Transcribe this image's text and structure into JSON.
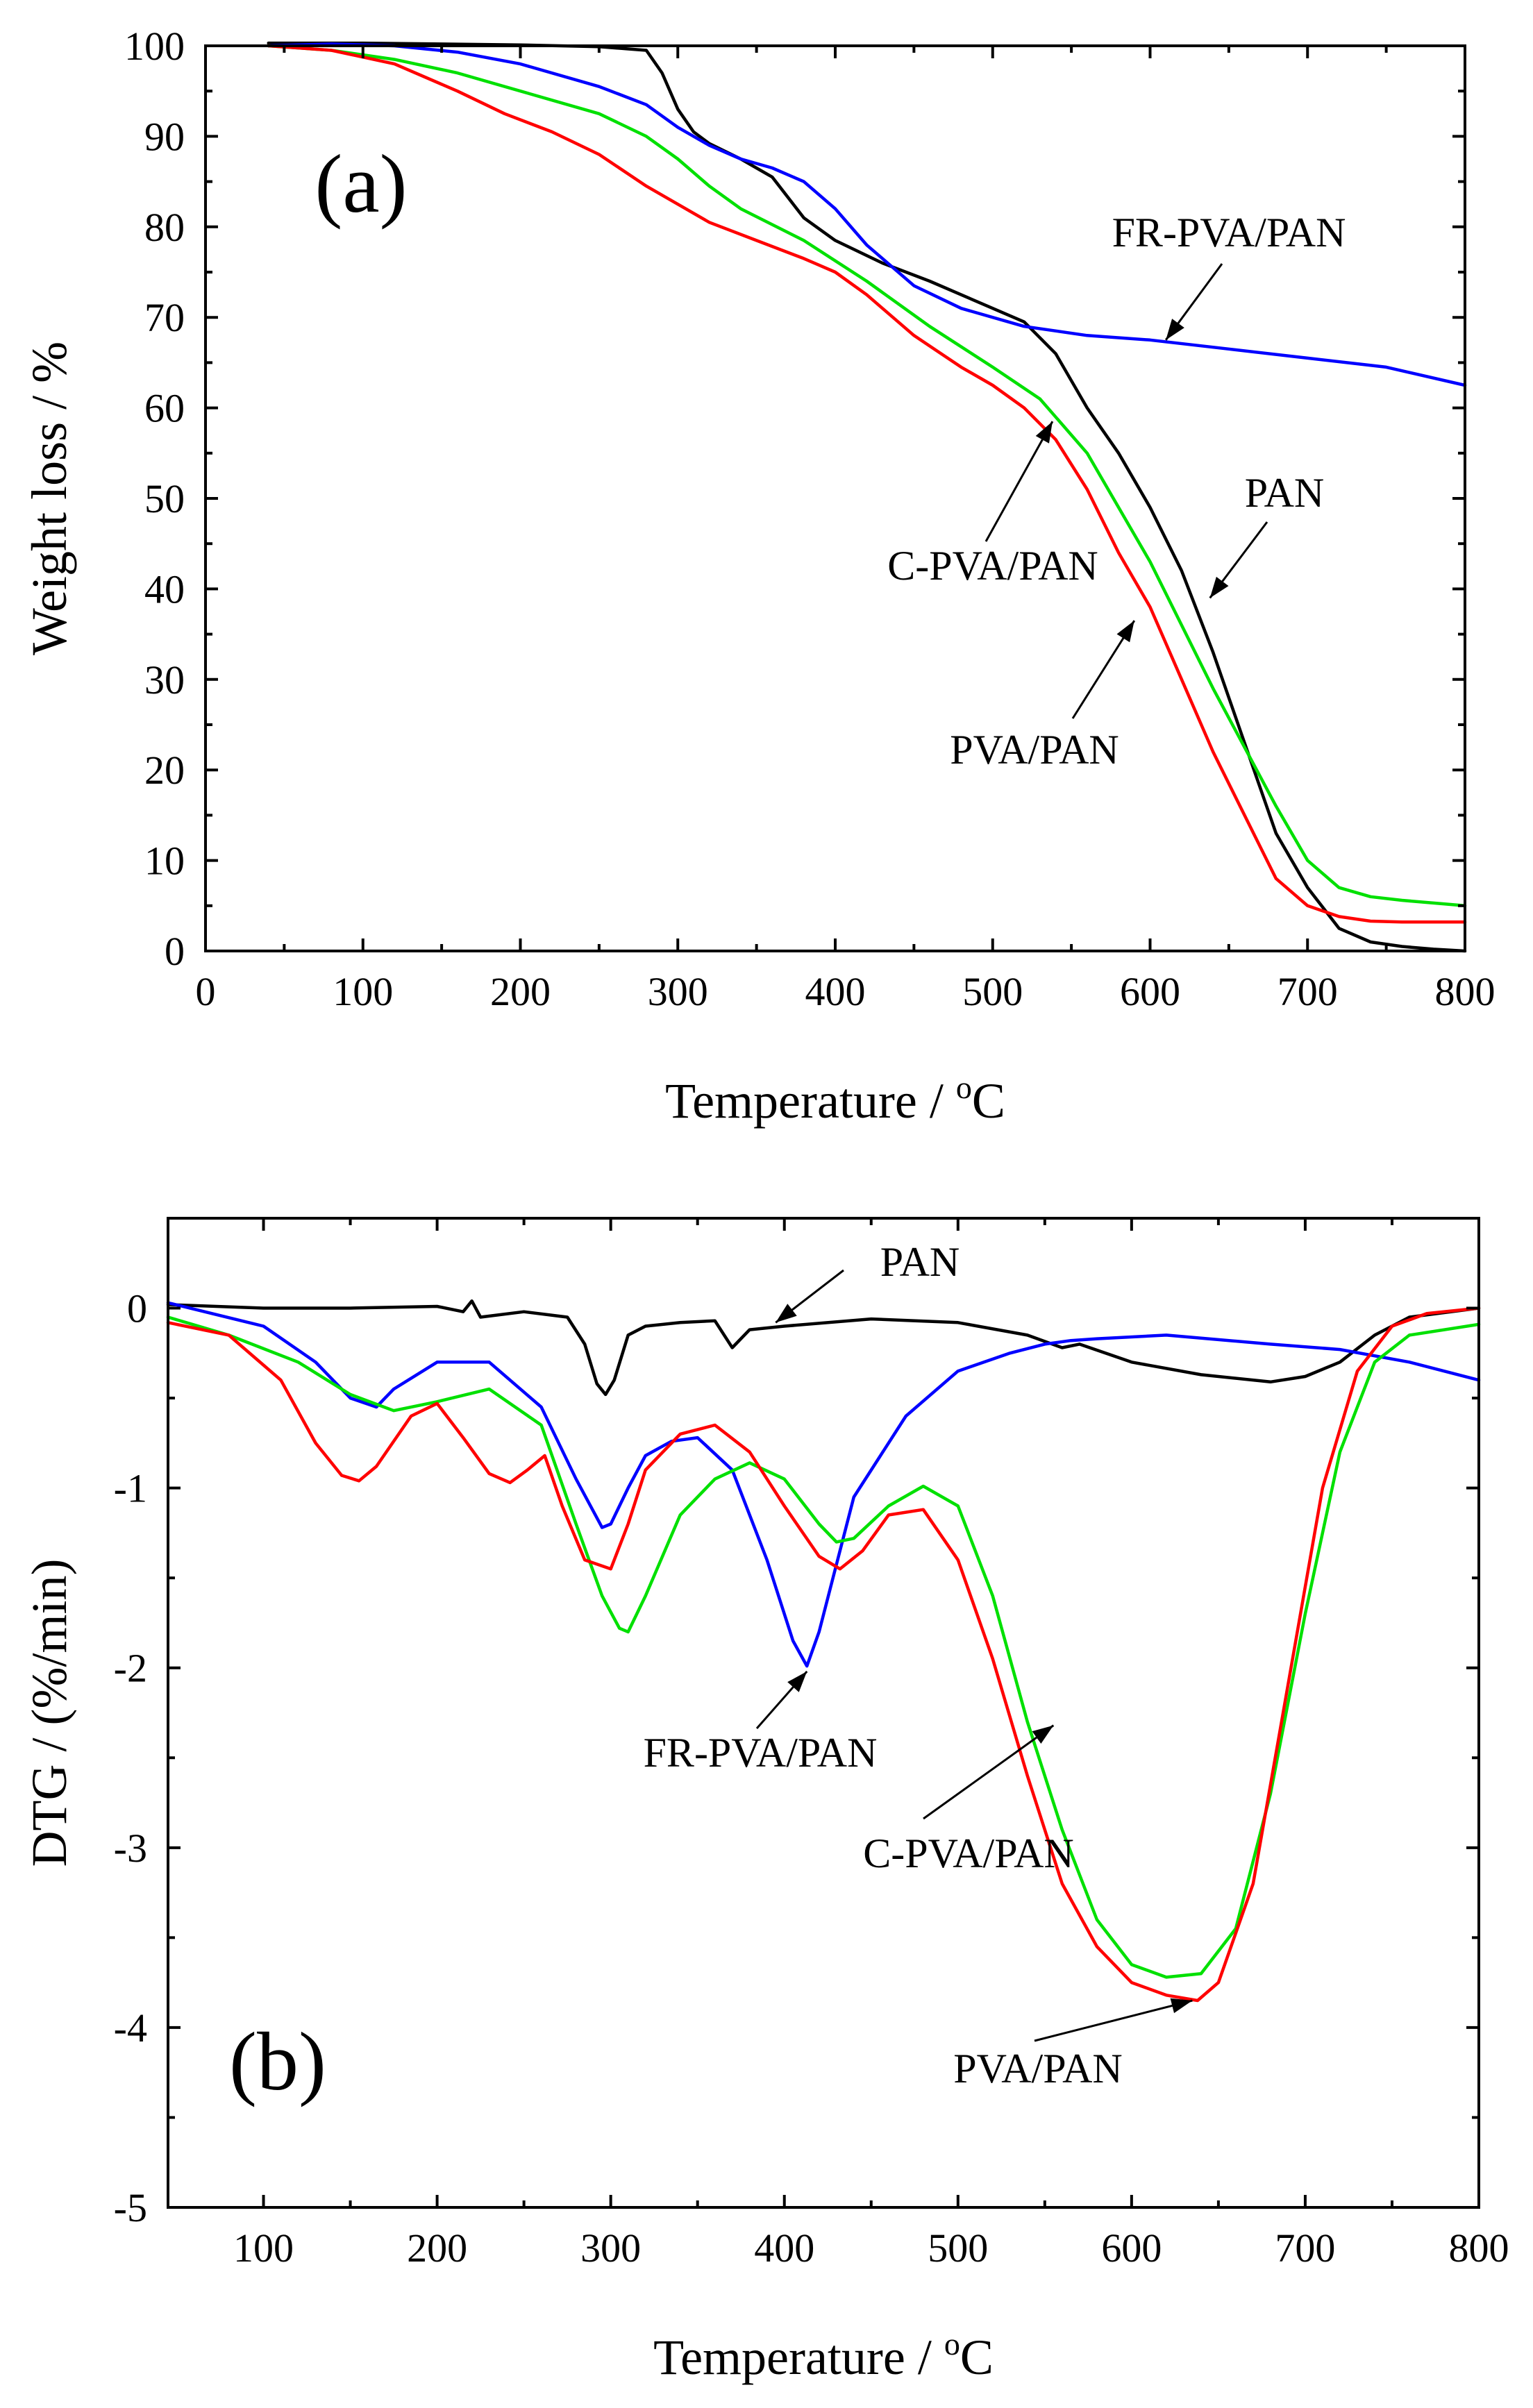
{
  "chart_data": [
    {
      "type": "line",
      "panel_label": "(a)",
      "xlabel": "Temperature / ",
      "xlabel_sup": "o",
      "xlabel_unit": "C",
      "ylabel": "Weight loss / %",
      "xlim": [
        0,
        800
      ],
      "ylim": [
        0,
        100
      ],
      "xticks": [
        0,
        100,
        200,
        300,
        400,
        500,
        600,
        700,
        800
      ],
      "yticks": [
        0,
        10,
        20,
        30,
        40,
        50,
        60,
        70,
        80,
        90,
        100
      ],
      "series": [
        {
          "name": "PAN",
          "color": "#000000",
          "x": [
            40,
            100,
            150,
            200,
            250,
            280,
            290,
            300,
            310,
            320,
            340,
            360,
            380,
            400,
            430,
            460,
            500,
            520,
            540,
            560,
            580,
            600,
            620,
            640,
            660,
            680,
            700,
            720,
            740,
            760,
            780,
            800
          ],
          "y": [
            100.3,
            100.3,
            100.2,
            100.1,
            99.9,
            99.5,
            97,
            93,
            90.5,
            89.2,
            87.5,
            85.5,
            81,
            78.5,
            76,
            74,
            71,
            69.5,
            66,
            60,
            55,
            49,
            42,
            33,
            23,
            13,
            7,
            2.5,
            1,
            0.5,
            0.2,
            0
          ]
        },
        {
          "name": "FR-PVA/PAN",
          "color": "#0000ff",
          "x": [
            40,
            80,
            120,
            160,
            200,
            250,
            280,
            300,
            320,
            340,
            360,
            380,
            400,
            420,
            450,
            480,
            520,
            560,
            600,
            650,
            700,
            750,
            800
          ],
          "y": [
            100,
            100.2,
            100,
            99.3,
            98,
            95.5,
            93.5,
            91,
            89,
            87.5,
            86.5,
            85,
            82,
            78,
            73.5,
            71,
            69,
            68,
            67.5,
            66.5,
            65.5,
            64.5,
            62.5
          ]
        },
        {
          "name": "C-PVA/PAN",
          "color": "#00e000",
          "x": [
            40,
            80,
            120,
            160,
            200,
            250,
            280,
            300,
            320,
            340,
            380,
            420,
            460,
            500,
            530,
            560,
            600,
            640,
            680,
            700,
            720,
            740,
            760,
            780,
            800
          ],
          "y": [
            100,
            99.5,
            98.5,
            97,
            95,
            92.5,
            90,
            87.5,
            84.5,
            82,
            78.5,
            74,
            69,
            64.5,
            61,
            55,
            43,
            29,
            16,
            10,
            7,
            6,
            5.6,
            5.3,
            5
          ]
        },
        {
          "name": "PVA/PAN",
          "color": "#ff0000",
          "x": [
            40,
            80,
            120,
            160,
            190,
            220,
            250,
            280,
            300,
            320,
            350,
            380,
            400,
            420,
            450,
            480,
            500,
            520,
            540,
            560,
            580,
            600,
            620,
            640,
            660,
            680,
            700,
            720,
            740,
            760,
            800
          ],
          "y": [
            100,
            99.5,
            98,
            95,
            92.5,
            90.5,
            88,
            84.5,
            82.5,
            80.5,
            78.5,
            76.5,
            75,
            72.5,
            68,
            64.5,
            62.5,
            60,
            56.5,
            51,
            44,
            38,
            30,
            22,
            15,
            8,
            5,
            3.8,
            3.3,
            3.2,
            3.2
          ]
        }
      ],
      "annotations": [
        {
          "text": "FR-PVA/PAN",
          "target_x": 610,
          "target_y": 67.5
        },
        {
          "text": "PAN",
          "target_x": 638,
          "target_y": 39
        },
        {
          "text": "C-PVA/PAN",
          "target_x": 538,
          "target_y": 58.5
        },
        {
          "text": "PVA/PAN",
          "target_x": 590,
          "target_y": 36.5
        }
      ]
    },
    {
      "type": "line",
      "panel_label": "(b)",
      "xlabel": "Temperature / ",
      "xlabel_sup": "o",
      "xlabel_unit": "C",
      "ylabel": "DTG / (%/min)",
      "xlim": [
        45,
        800
      ],
      "ylim": [
        -5,
        0.5
      ],
      "xticks": [
        100,
        200,
        300,
        400,
        500,
        600,
        700,
        800
      ],
      "yticks": [
        0,
        -1,
        -2,
        -3,
        -4,
        -5
      ],
      "series": [
        {
          "name": "PAN",
          "color": "#000000",
          "x": [
            45,
            100,
            150,
            200,
            215,
            220,
            225,
            250,
            275,
            285,
            292,
            297,
            302,
            310,
            320,
            340,
            360,
            370,
            380,
            400,
            450,
            500,
            540,
            560,
            570,
            600,
            640,
            680,
            700,
            720,
            740,
            760,
            800
          ],
          "y": [
            0.02,
            0,
            0,
            0.01,
            -0.02,
            0.04,
            -0.05,
            -0.02,
            -0.05,
            -0.2,
            -0.42,
            -0.48,
            -0.4,
            -0.15,
            -0.1,
            -0.08,
            -0.07,
            -0.22,
            -0.12,
            -0.1,
            -0.06,
            -0.08,
            -0.15,
            -0.22,
            -0.2,
            -0.3,
            -0.37,
            -0.41,
            -0.38,
            -0.3,
            -0.15,
            -0.05,
            0
          ]
        },
        {
          "name": "FR-PVA/PAN",
          "color": "#0000ff",
          "x": [
            45,
            100,
            130,
            150,
            165,
            175,
            200,
            230,
            260,
            280,
            295,
            300,
            310,
            320,
            335,
            350,
            370,
            390,
            405,
            413,
            420,
            440,
            470,
            500,
            530,
            550,
            565,
            580,
            620,
            680,
            720,
            760,
            800
          ],
          "y": [
            0.03,
            -0.1,
            -0.3,
            -0.5,
            -0.55,
            -0.45,
            -0.3,
            -0.3,
            -0.55,
            -0.95,
            -1.22,
            -1.2,
            -1.0,
            -0.82,
            -0.74,
            -0.72,
            -0.9,
            -1.4,
            -1.85,
            -1.99,
            -1.8,
            -1.05,
            -0.6,
            -0.35,
            -0.25,
            -0.2,
            -0.18,
            -0.17,
            -0.15,
            -0.2,
            -0.23,
            -0.3,
            -0.4
          ]
        },
        {
          "name": "C-PVA/PAN",
          "color": "#00e000",
          "x": [
            45,
            80,
            120,
            150,
            175,
            200,
            230,
            260,
            280,
            295,
            305,
            310,
            320,
            340,
            360,
            380,
            400,
            420,
            430,
            440,
            460,
            480,
            500,
            520,
            540,
            560,
            580,
            600,
            620,
            640,
            660,
            680,
            700,
            720,
            740,
            760,
            800
          ],
          "y": [
            -0.05,
            -0.15,
            -0.3,
            -0.48,
            -0.57,
            -0.52,
            -0.45,
            -0.65,
            -1.2,
            -1.6,
            -1.78,
            -1.8,
            -1.6,
            -1.15,
            -0.95,
            -0.86,
            -0.95,
            -1.2,
            -1.3,
            -1.28,
            -1.1,
            -0.99,
            -1.1,
            -1.6,
            -2.3,
            -2.9,
            -3.4,
            -3.65,
            -3.72,
            -3.7,
            -3.45,
            -2.7,
            -1.7,
            -0.8,
            -0.3,
            -0.15,
            -0.09
          ]
        },
        {
          "name": "PVA/PAN",
          "color": "#ff0000",
          "x": [
            45,
            80,
            110,
            130,
            145,
            155,
            165,
            185,
            200,
            215,
            230,
            242,
            252,
            262,
            272,
            285,
            300,
            310,
            320,
            340,
            360,
            380,
            400,
            420,
            432,
            445,
            460,
            480,
            500,
            520,
            540,
            560,
            580,
            600,
            620,
            638,
            650,
            670,
            690,
            710,
            730,
            750,
            770,
            800
          ],
          "y": [
            -0.08,
            -0.15,
            -0.4,
            -0.75,
            -0.93,
            -0.96,
            -0.88,
            -0.6,
            -0.53,
            -0.72,
            -0.92,
            -0.97,
            -0.9,
            -0.82,
            -1.1,
            -1.4,
            -1.45,
            -1.2,
            -0.9,
            -0.7,
            -0.65,
            -0.8,
            -1.1,
            -1.38,
            -1.45,
            -1.35,
            -1.15,
            -1.12,
            -1.4,
            -1.95,
            -2.6,
            -3.2,
            -3.55,
            -3.75,
            -3.82,
            -3.85,
            -3.75,
            -3.2,
            -2.1,
            -1.0,
            -0.35,
            -0.1,
            -0.03,
            0
          ]
        }
      ],
      "annotations": [
        {
          "text": "PAN",
          "target_x": 395,
          "target_y": -0.08
        },
        {
          "text": "FR-PVA/PAN",
          "target_x": 413,
          "target_y": -2.02
        },
        {
          "text": "C-PVA/PAN",
          "target_x": 555,
          "target_y": -2.32
        },
        {
          "text": "PVA/PAN",
          "target_x": 635,
          "target_y": -3.85
        }
      ]
    }
  ]
}
